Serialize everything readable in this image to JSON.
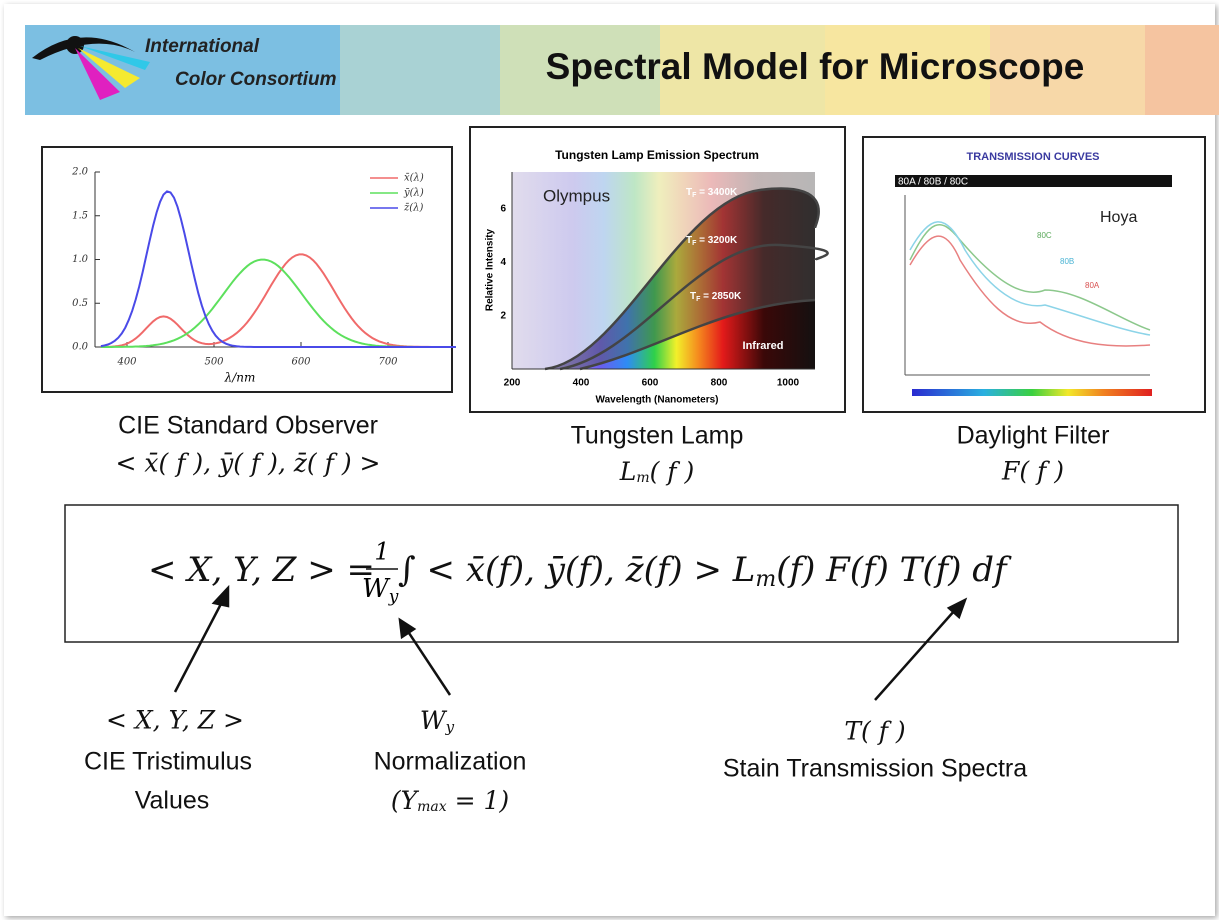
{
  "header": {
    "logo_line1": "International",
    "logo_line2": "Color Consortium",
    "title": "Spectral Model for Microscope"
  },
  "figures": [
    {
      "y_ticks": [
        "0.0",
        "0.5",
        "1.0",
        "1.5",
        "2.0"
      ],
      "x_ticks": [
        "400",
        "500",
        "600",
        "700"
      ],
      "x_label": "λ/nm",
      "legend": [
        "x̄(λ)",
        "ȳ(λ)",
        "z̄(λ)"
      ],
      "caption": "CIE Standard Observer",
      "symbol": "< x̄( f ), ȳ( f ), z̄( f ) >"
    },
    {
      "title": "Tungsten Lamp Emission Spectrum",
      "brand": "Olympus",
      "curve_labels": [
        {
          "base": "T",
          "sub": "F",
          "text": " = 3400K"
        },
        {
          "base": "T",
          "sub": "F",
          "text": " = 3200K"
        },
        {
          "base": "T",
          "sub": "F",
          "text": " = 2850K"
        }
      ],
      "region_label": "Infrared",
      "y_label": "Relative Intensity",
      "x_label": "Wavelength (Nanometers)",
      "y_ticks": [
        "2",
        "4",
        "6"
      ],
      "x_ticks": [
        "200",
        "400",
        "600",
        "800",
        "1000"
      ],
      "caption": "Tungsten Lamp",
      "symbol": {
        "base": "L",
        "sub": "m",
        "tail": "( f )"
      }
    },
    {
      "title": "TRANSMISSION CURVES",
      "bar_label": "80A / 80B / 80C",
      "brand": "Hoya",
      "curve_labels": [
        "80C",
        "80B",
        "80A"
      ],
      "caption": "Daylight Filter",
      "symbol": "F( f )"
    }
  ],
  "equation": {
    "lhs": "< X, Y, Z > = ",
    "num": "1",
    "den": "W",
    "den_sub": "y",
    "rhs": " ∫ < x̄(f), ȳ(f), z̄(f) > L",
    "rhs_sub": "m",
    "rhs_tail": "(f) F(f) T(f) df"
  },
  "annotations": [
    {
      "symbol": "< X, Y, Z >",
      "lines": [
        "CIE Tristimulus",
        "Values"
      ]
    },
    {
      "symbol_base": "W",
      "symbol_sub": "y",
      "lines": [
        "Normalization"
      ],
      "note_open": "(Y",
      "note_sub": "max",
      "note_close": " = 1)"
    },
    {
      "symbol": "T( f )",
      "lines": [
        "Stain Transmission Spectra"
      ]
    }
  ]
}
